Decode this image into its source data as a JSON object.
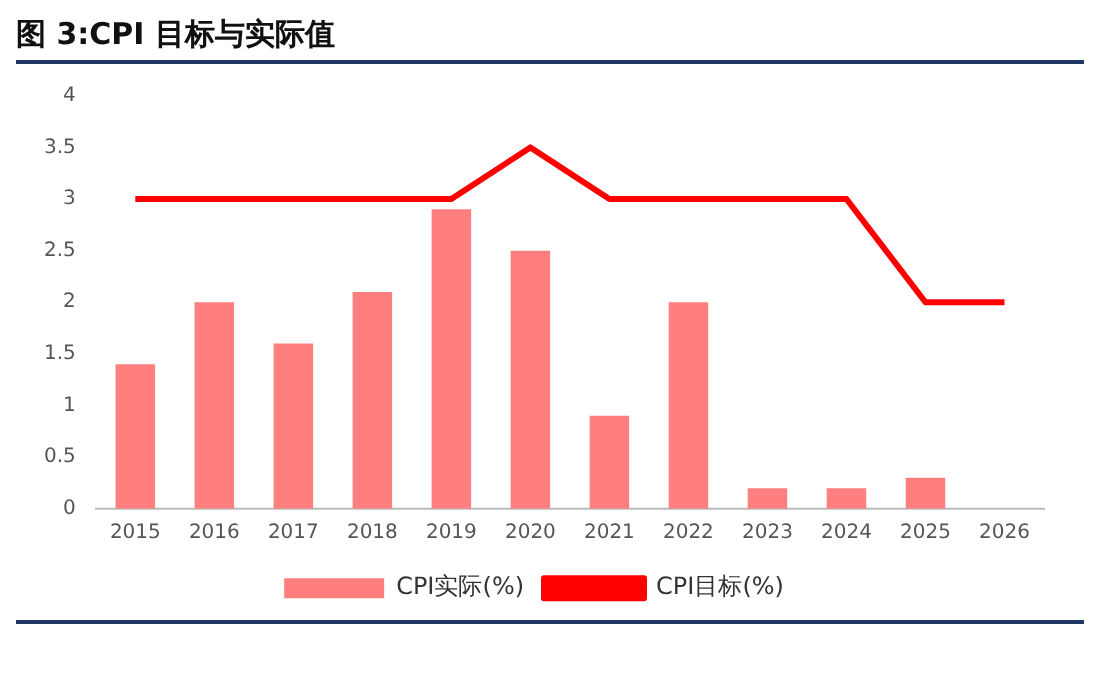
{
  "chart_data": {
    "type": "bar",
    "title": "图 3:CPI 目标与实际值",
    "categories": [
      "2015",
      "2016",
      "2017",
      "2018",
      "2019",
      "2020",
      "2021",
      "2022",
      "2023",
      "2024",
      "2025",
      "2026"
    ],
    "series": [
      {
        "name": "CPI实际(%)",
        "color": "#ff7f7f",
        "values": [
          1.4,
          2.0,
          1.6,
          2.1,
          2.9,
          2.5,
          0.9,
          2.0,
          0.2,
          0.2,
          0.3,
          null
        ]
      },
      {
        "name": "CPI目标(%)",
        "type": "line",
        "color": "#ff0000",
        "values": [
          3,
          3,
          3,
          3,
          3,
          3.5,
          3,
          3,
          3,
          3,
          2,
          2
        ]
      }
    ],
    "ylim": [
      0,
      4
    ],
    "yticks": [
      0,
      0.5,
      1,
      1.5,
      2,
      2.5,
      3,
      3.5,
      4
    ],
    "grid": false,
    "legend": "bottom",
    "marker": "none"
  }
}
